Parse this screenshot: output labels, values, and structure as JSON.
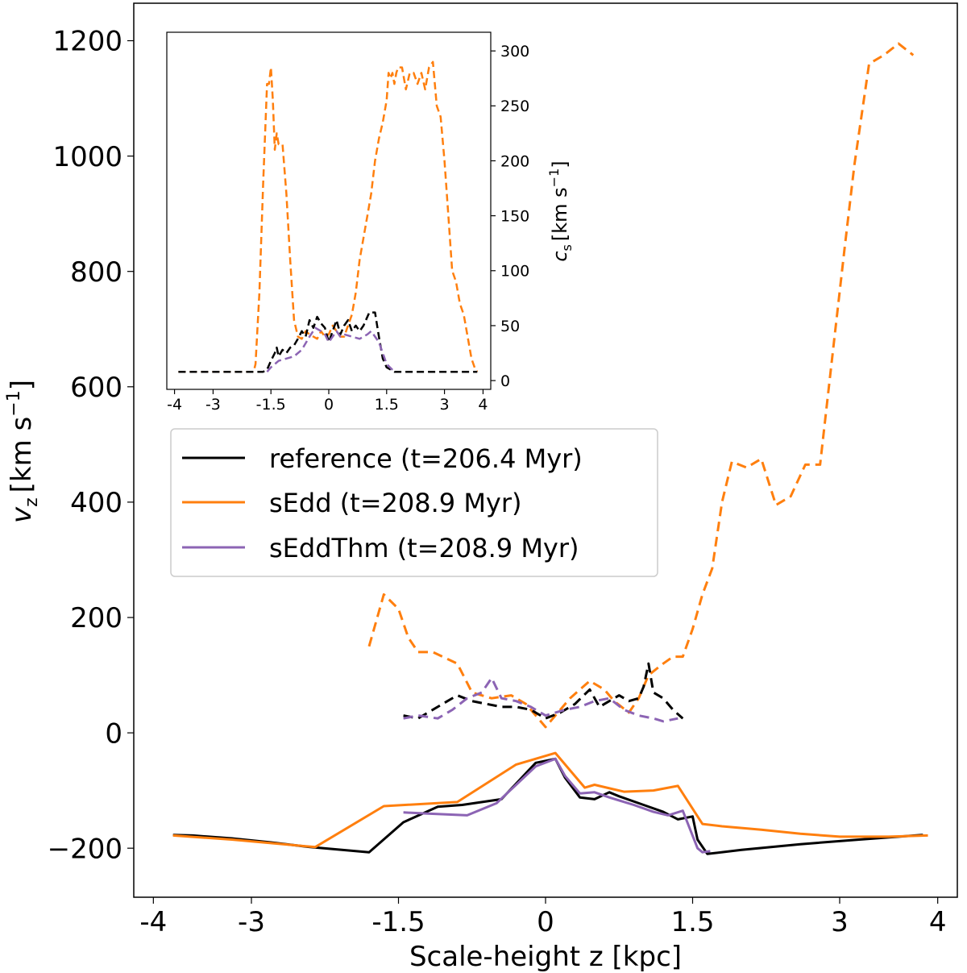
{
  "chart_data": [
    {
      "type": "line",
      "panel": "main",
      "xlabel": "Scale-height z [kpc]",
      "ylabel_main": "v",
      "ylabel_sub": "z",
      "ylabel_unit": "[km s",
      "ylabel_exp": "−1",
      "ylabel_close": "]",
      "xlim": [
        -4.2,
        4.2
      ],
      "ylim": [
        -285,
        1265
      ],
      "xticks": [
        -4,
        -3,
        -1.5,
        0,
        1.5,
        3,
        4
      ],
      "xtick_labels": [
        "-4",
        "-3",
        "-1.5",
        "0",
        "1.5",
        "3",
        "4"
      ],
      "yticks": [
        -200,
        0,
        200,
        400,
        600,
        800,
        1000,
        1200
      ],
      "ytick_labels": [
        "−200",
        "0",
        "200",
        "400",
        "600",
        "800",
        "1000",
        "1200"
      ],
      "legend": {
        "position": "center-left",
        "entries": [
          {
            "label": "reference (t=206.4 Myr)",
            "color": "#000000"
          },
          {
            "label": "sEdd (t=208.9 Myr)",
            "color": "#ff7f0e"
          },
          {
            "label": "sEddThm (t=208.9 Myr)",
            "color": "#8c64b4"
          }
        ]
      },
      "series": [
        {
          "name": "reference",
          "style": "solid",
          "color": "#000000",
          "x": [
            -3.8,
            -3.6,
            -3.2,
            -2.8,
            -2.4,
            -1.8,
            -1.45,
            -1.1,
            -0.85,
            -0.45,
            -0.1,
            0.1,
            0.2,
            0.35,
            0.5,
            0.65,
            0.75,
            1.0,
            1.2,
            1.35,
            1.5,
            1.55,
            1.65,
            2.0,
            2.6,
            3.2,
            3.85
          ],
          "y": [
            -177,
            -178,
            -183,
            -190,
            -198,
            -207,
            -155,
            -128,
            -125,
            -115,
            -52,
            -45,
            -78,
            -112,
            -115,
            -103,
            -110,
            -125,
            -137,
            -150,
            -145,
            -185,
            -210,
            -203,
            -193,
            -185,
            -177
          ]
        },
        {
          "name": "sEddThm",
          "style": "solid",
          "color": "#8c64b4",
          "x": [
            -1.45,
            -1.2,
            -0.8,
            -0.5,
            -0.1,
            0.1,
            0.2,
            0.35,
            0.5,
            0.65,
            0.9,
            1.1,
            1.25,
            1.4,
            1.55,
            1.6,
            1.68
          ],
          "y": [
            -138,
            -140,
            -143,
            -122,
            -58,
            -45,
            -75,
            -105,
            -103,
            -112,
            -125,
            -137,
            -143,
            -135,
            -200,
            -207,
            -205
          ]
        },
        {
          "name": "sEdd",
          "style": "solid",
          "color": "#ff7f0e",
          "x": [
            -3.8,
            -3.2,
            -2.35,
            -1.65,
            -0.9,
            -0.3,
            0.1,
            0.4,
            0.5,
            0.8,
            1.1,
            1.35,
            1.6,
            1.8,
            2.2,
            2.6,
            3.0,
            3.5,
            3.9
          ],
          "y": [
            -178,
            -185,
            -198,
            -127,
            -120,
            -55,
            -35,
            -95,
            -90,
            -102,
            -100,
            -92,
            -158,
            -162,
            -168,
            -175,
            -180,
            -180,
            -178
          ]
        },
        {
          "name": "sEdd cs (dashed)",
          "style": "dashed",
          "color": "#ff7f0e",
          "x": [
            -1.8,
            -1.65,
            -1.5,
            -1.4,
            -1.3,
            -1.15,
            -0.9,
            -0.75,
            -0.55,
            -0.35,
            -0.2,
            0.0,
            0.1,
            0.25,
            0.45,
            0.6,
            0.7,
            0.85,
            0.95,
            1.05,
            1.2,
            1.3,
            1.4,
            1.5,
            1.6,
            1.7,
            1.8,
            1.9,
            2.05,
            2.2,
            2.35,
            2.5,
            2.65,
            2.8,
            2.95,
            3.05,
            3.15,
            3.3,
            3.45,
            3.6,
            3.75
          ],
          "y": [
            150,
            240,
            215,
            165,
            140,
            140,
            120,
            70,
            60,
            65,
            50,
            10,
            30,
            60,
            90,
            75,
            55,
            35,
            60,
            100,
            120,
            132,
            132,
            180,
            240,
            285,
            400,
            470,
            460,
            475,
            395,
            410,
            465,
            465,
            690,
            840,
            985,
            1160,
            1175,
            1195,
            1175
          ]
        },
        {
          "name": "reference cs (dashed)",
          "style": "dashed",
          "color": "#000000",
          "x": [
            -1.45,
            -1.3,
            -1.2,
            -1.0,
            -0.9,
            -0.75,
            -0.6,
            -0.45,
            -0.3,
            -0.15,
            0.0,
            0.15,
            0.3,
            0.45,
            0.55,
            0.65,
            0.75,
            0.85,
            0.95,
            1.0,
            1.05,
            1.1,
            1.2,
            1.3,
            1.4
          ],
          "y": [
            30,
            25,
            35,
            55,
            65,
            55,
            50,
            45,
            45,
            40,
            25,
            35,
            50,
            75,
            45,
            55,
            65,
            55,
            60,
            80,
            120,
            70,
            60,
            40,
            25
          ]
        },
        {
          "name": "sEddThm cs (dashed)",
          "style": "dashed",
          "color": "#8c64b4",
          "x": [
            -1.45,
            -1.3,
            -1.1,
            -0.95,
            -0.8,
            -0.65,
            -0.55,
            -0.45,
            -0.3,
            -0.15,
            0.0,
            0.2,
            0.35,
            0.5,
            0.65,
            0.8,
            0.95,
            1.1,
            1.2,
            1.35
          ],
          "y": [
            25,
            30,
            25,
            40,
            60,
            70,
            95,
            60,
            55,
            45,
            30,
            40,
            45,
            55,
            60,
            40,
            30,
            25,
            20,
            25
          ]
        }
      ]
    },
    {
      "type": "line",
      "panel": "inset",
      "ylabel_main": "c",
      "ylabel_sub": "s",
      "ylabel_unit": "[km s",
      "ylabel_exp": "−1",
      "ylabel_close": "]",
      "y_axis_side": "right",
      "xlim": [
        -4.2,
        4.2
      ],
      "ylim": [
        -8,
        317
      ],
      "xticks": [
        -4,
        -3,
        -1.5,
        0,
        1.5,
        3,
        4
      ],
      "xtick_labels": [
        "-4",
        "-3",
        "-1.5",
        "0",
        "1.5",
        "3",
        "4"
      ],
      "yticks": [
        0,
        50,
        100,
        150,
        200,
        250,
        300
      ],
      "ytick_labels": [
        "0",
        "50",
        "100",
        "150",
        "200",
        "250",
        "300"
      ],
      "series": [
        {
          "name": "sEdd",
          "style": "dashed",
          "color": "#ff7f0e",
          "x": [
            -3.9,
            -3.0,
            -1.95,
            -1.9,
            -1.8,
            -1.7,
            -1.6,
            -1.55,
            -1.5,
            -1.45,
            -1.4,
            -1.35,
            -1.3,
            -1.2,
            -1.1,
            -1.0,
            -0.9,
            -0.8,
            -0.7,
            -0.6,
            -0.5,
            -0.4,
            -0.3,
            -0.2,
            -0.1,
            0.0,
            0.1,
            0.2,
            0.3,
            0.4,
            0.5,
            0.6,
            0.7,
            0.8,
            0.9,
            1.0,
            1.1,
            1.2,
            1.3,
            1.4,
            1.5,
            1.55,
            1.6,
            1.65,
            1.7,
            1.75,
            1.8,
            1.9,
            2.0,
            2.1,
            2.2,
            2.3,
            2.4,
            2.5,
            2.6,
            2.7,
            2.8,
            2.9,
            3.0,
            3.1,
            3.2,
            3.3,
            3.4,
            3.5,
            3.6,
            3.7,
            3.8,
            3.85
          ],
          "y": [
            8,
            8,
            8,
            15,
            80,
            180,
            270,
            270,
            285,
            255,
            210,
            225,
            215,
            215,
            170,
            110,
            55,
            40,
            38,
            45,
            42,
            40,
            38,
            45,
            40,
            42,
            50,
            45,
            40,
            40,
            50,
            60,
            80,
            110,
            130,
            150,
            170,
            200,
            220,
            235,
            255,
            280,
            275,
            280,
            270,
            280,
            285,
            285,
            265,
            280,
            280,
            270,
            280,
            265,
            285,
            290,
            250,
            240,
            200,
            150,
            100,
            90,
            70,
            60,
            40,
            20,
            10,
            8
          ]
        },
        {
          "name": "reference",
          "style": "dashed",
          "color": "#000000",
          "x": [
            -3.9,
            -3.0,
            -2.0,
            -1.8,
            -1.7,
            -1.6,
            -1.5,
            -1.4,
            -1.35,
            -1.3,
            -1.2,
            -1.1,
            -1.0,
            -0.9,
            -0.8,
            -0.7,
            -0.6,
            -0.5,
            -0.4,
            -0.3,
            -0.2,
            -0.1,
            0.0,
            0.1,
            0.2,
            0.3,
            0.4,
            0.5,
            0.6,
            0.7,
            0.8,
            0.9,
            1.0,
            1.05,
            1.1,
            1.2,
            1.3,
            1.4,
            1.5,
            1.7,
            2.0,
            3.0,
            3.85
          ],
          "y": [
            8,
            8,
            8,
            8,
            8,
            10,
            18,
            25,
            30,
            22,
            28,
            25,
            30,
            32,
            38,
            45,
            40,
            55,
            48,
            58,
            52,
            48,
            35,
            45,
            55,
            42,
            50,
            55,
            45,
            50,
            45,
            50,
            58,
            62,
            62,
            62,
            40,
            20,
            12,
            8,
            8,
            8,
            8
          ]
        },
        {
          "name": "sEddThm",
          "style": "dashed",
          "color": "#8c64b4",
          "x": [
            -1.6,
            -1.5,
            -1.3,
            -1.1,
            -0.9,
            -0.7,
            -0.5,
            -0.35,
            -0.2,
            -0.1,
            0.0,
            0.1,
            0.2,
            0.3,
            0.4,
            0.6,
            0.8,
            1.0,
            1.1,
            1.2,
            1.3,
            1.4,
            1.5,
            1.7
          ],
          "y": [
            8,
            12,
            18,
            20,
            22,
            28,
            40,
            48,
            45,
            42,
            35,
            40,
            45,
            40,
            42,
            40,
            38,
            42,
            45,
            40,
            35,
            25,
            15,
            8
          ]
        }
      ]
    }
  ]
}
